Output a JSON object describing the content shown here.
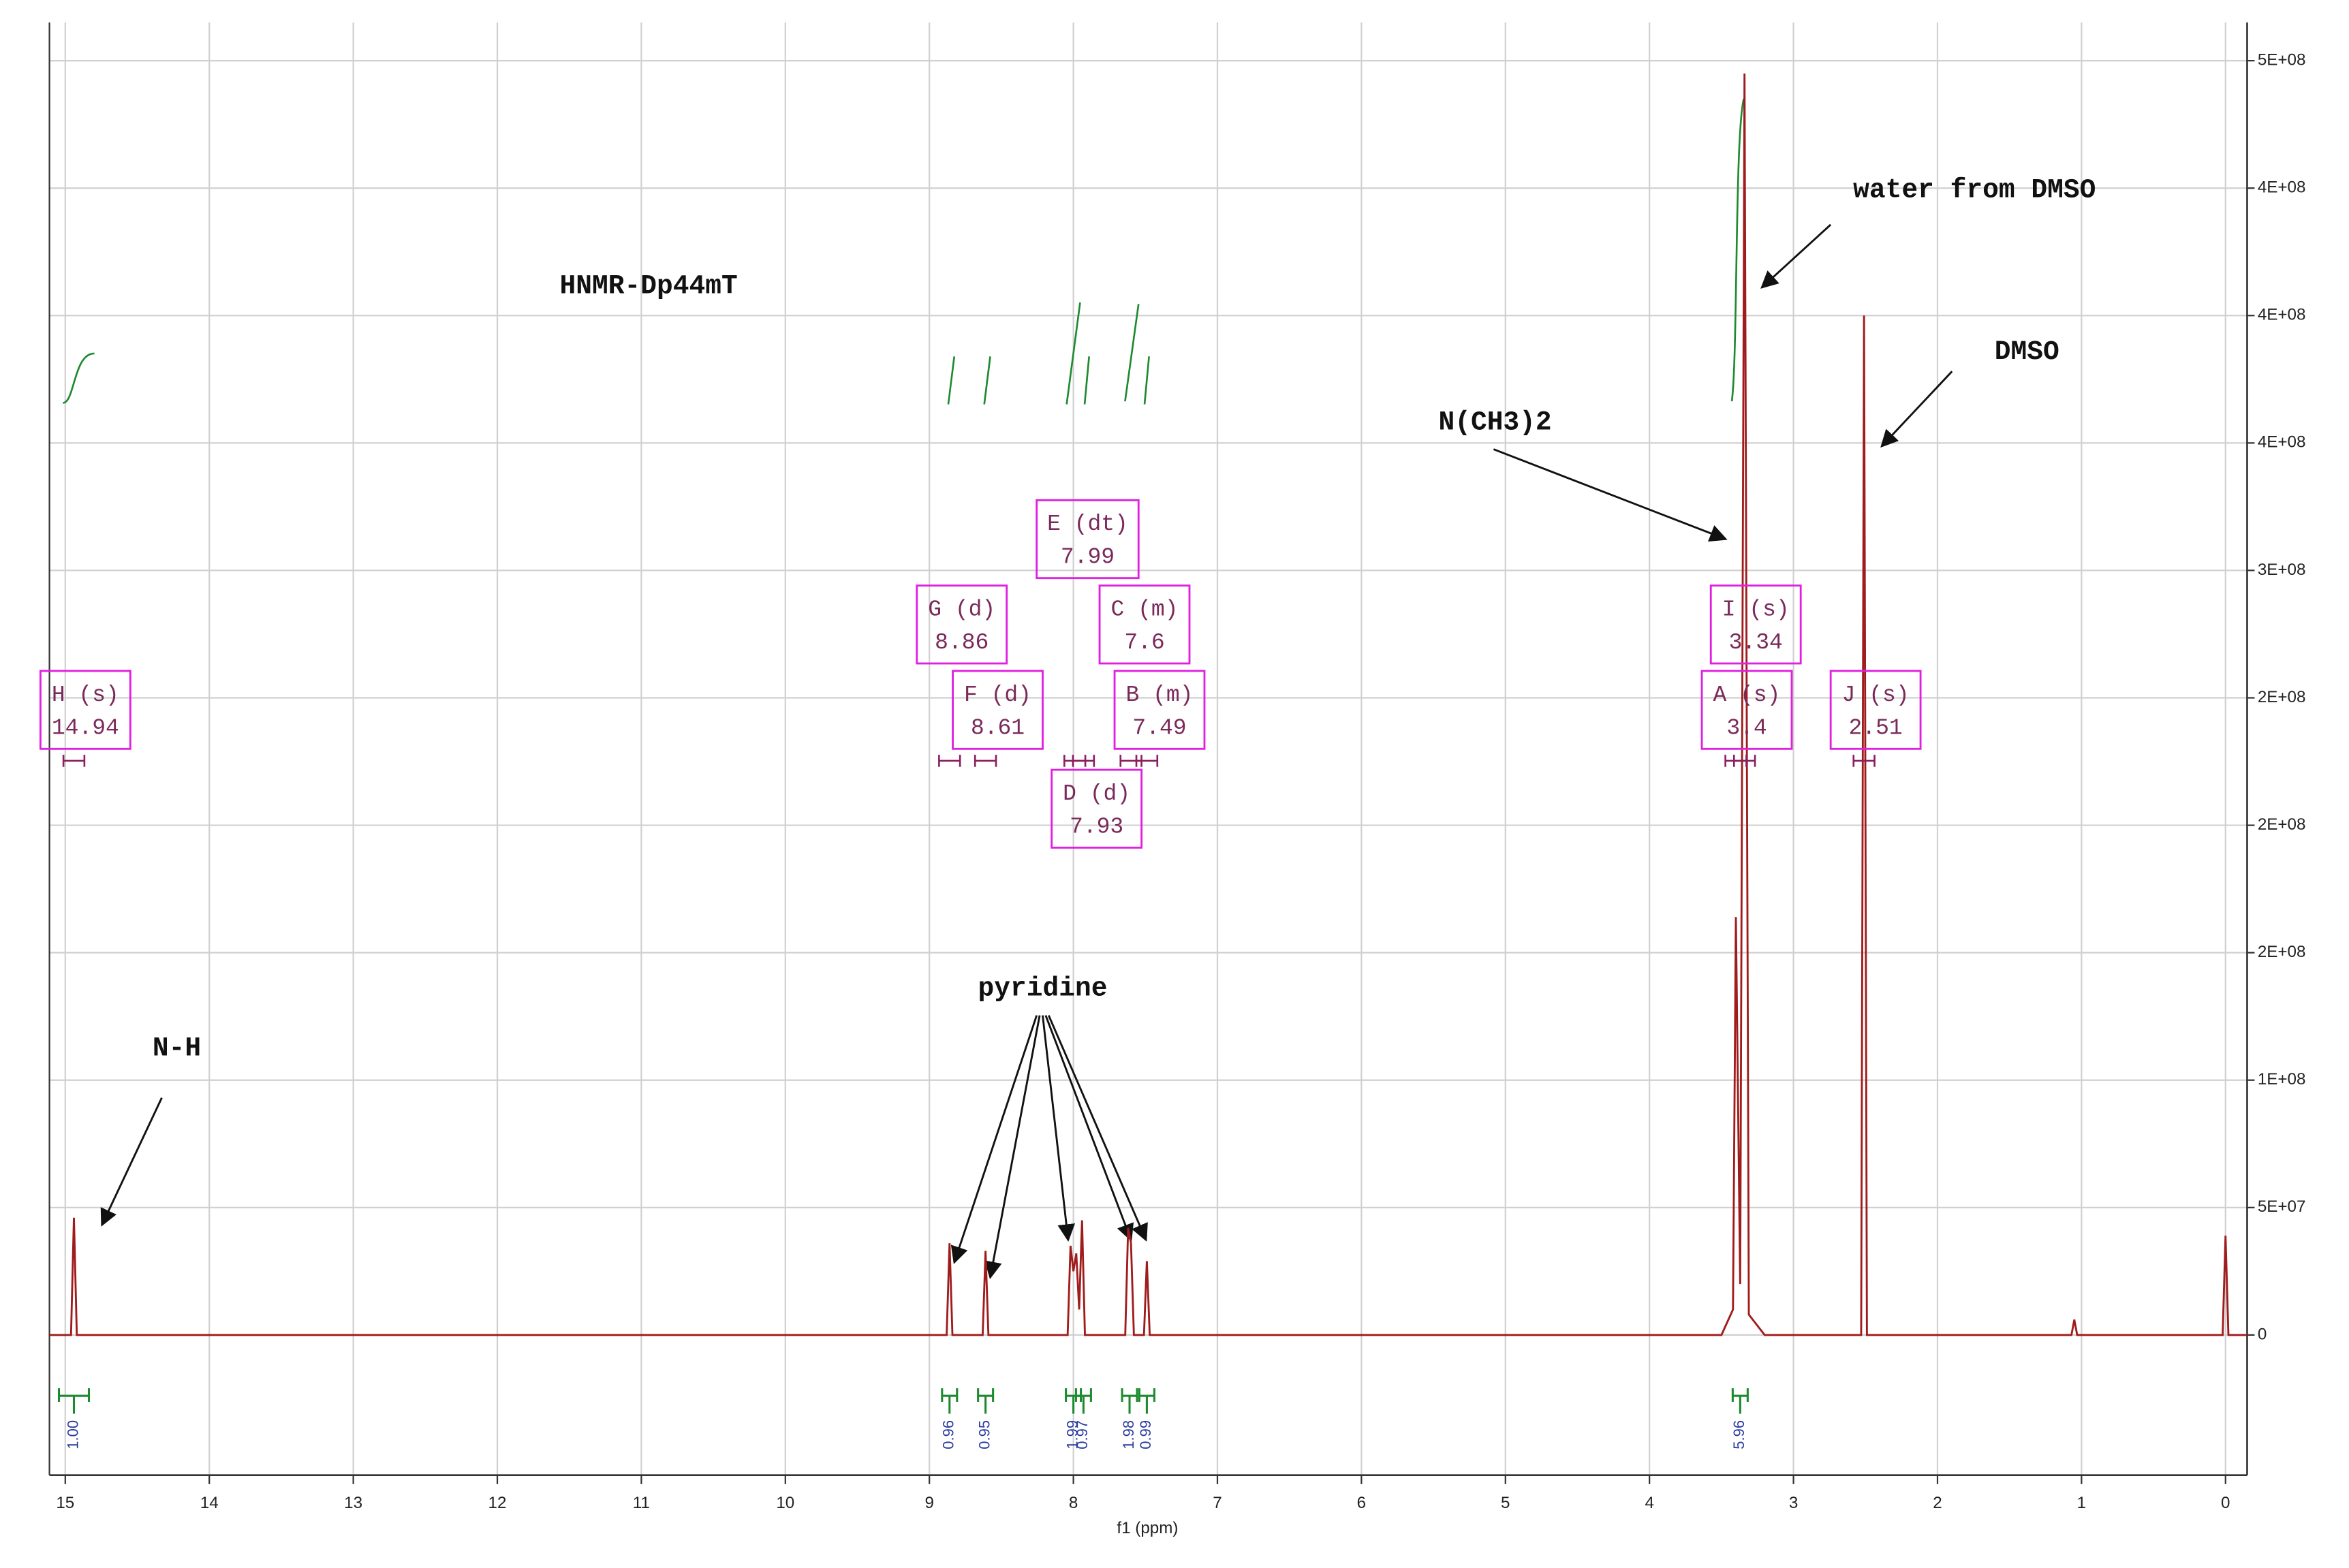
{
  "chart_data": {
    "type": "line",
    "title": "HNMR-Dp44mT",
    "x_label": "f1 (ppm)",
    "xlim": [
      15.11,
      -0.15
    ],
    "ylim": [
      -55000000,
      515000000
    ],
    "xticks": [
      15,
      14,
      13,
      12,
      11,
      10,
      9,
      8,
      7,
      6,
      5,
      4,
      3,
      2,
      1,
      0
    ],
    "yticks": [
      0,
      {
        "value": 50000000,
        "label": "5E+07"
      },
      {
        "value": 100000000,
        "label": "1E+08"
      },
      {
        "value": 150000000,
        "label": "2E+08"
      },
      {
        "value": 200000000,
        "label": "2E+08"
      },
      {
        "value": 250000000,
        "label": "2E+08"
      },
      {
        "value": 300000000,
        "label": "3E+08"
      },
      {
        "value": 350000000,
        "label": "4E+08"
      },
      {
        "value": 400000000,
        "label": "4E+08"
      },
      {
        "value": 450000000,
        "label": "4E+08"
      },
      {
        "value": 500000000,
        "label": "5E+08"
      }
    ],
    "grid": true,
    "color": "#a01c1c",
    "x": [
      15.11,
      14.96,
      14.94,
      14.92,
      8.88,
      8.86,
      8.84,
      8.63,
      8.61,
      8.59,
      8.04,
      8.02,
      8.0,
      7.98,
      7.96,
      7.94,
      7.92,
      7.64,
      7.62,
      7.6,
      7.58,
      7.51,
      7.49,
      7.47,
      3.5,
      3.42,
      3.4,
      3.37,
      3.34,
      3.31,
      3.2,
      2.53,
      2.51,
      2.49,
      1.07,
      1.05,
      1.03,
      0.02,
      0,
      -0.02,
      -0.15
    ],
    "values": [
      0,
      0,
      46000000,
      0,
      0,
      36000000,
      0,
      0,
      33000000,
      0,
      0,
      35000000,
      25000000,
      32000000,
      10000000,
      45000000,
      0,
      0,
      42000000,
      36000000,
      0,
      0,
      29000000,
      0,
      0,
      10000000,
      164000000,
      20000000,
      495000000,
      8000000,
      0,
      0,
      400000000,
      0,
      0,
      6000000,
      0,
      0,
      39000000,
      0,
      0
    ],
    "peak_labels": [
      {
        "name": "H (s)",
        "ppm": 14.94
      },
      {
        "name": "G (d)",
        "ppm": 8.86
      },
      {
        "name": "F (d)",
        "ppm": 8.61
      },
      {
        "name": "E (dt)",
        "ppm": 7.99
      },
      {
        "name": "D (d)",
        "ppm": 7.93
      },
      {
        "name": "C (m)",
        "ppm": 7.6
      },
      {
        "name": "B (m)",
        "ppm": 7.49
      },
      {
        "name": "I (s)",
        "ppm": 3.34
      },
      {
        "name": "A (s)",
        "ppm": 3.4
      },
      {
        "name": "J (s)",
        "ppm": 2.51
      }
    ],
    "integrals": {
      "x": [
        14.94,
        8.86,
        8.61,
        8.0,
        7.93,
        7.61,
        7.49,
        3.37
      ],
      "values": [
        1.0,
        0.96,
        0.95,
        1.99,
        0.97,
        1.98,
        0.99,
        5.96
      ],
      "value_labels": [
        "1.00",
        "0.96",
        "0.95",
        "1.99",
        "0.97",
        "1.98",
        "0.99",
        "5.96"
      ]
    },
    "annotations": [
      "N-H",
      "pyridine",
      "N(CH3)2",
      "water from DMSO",
      "DMSO"
    ]
  }
}
